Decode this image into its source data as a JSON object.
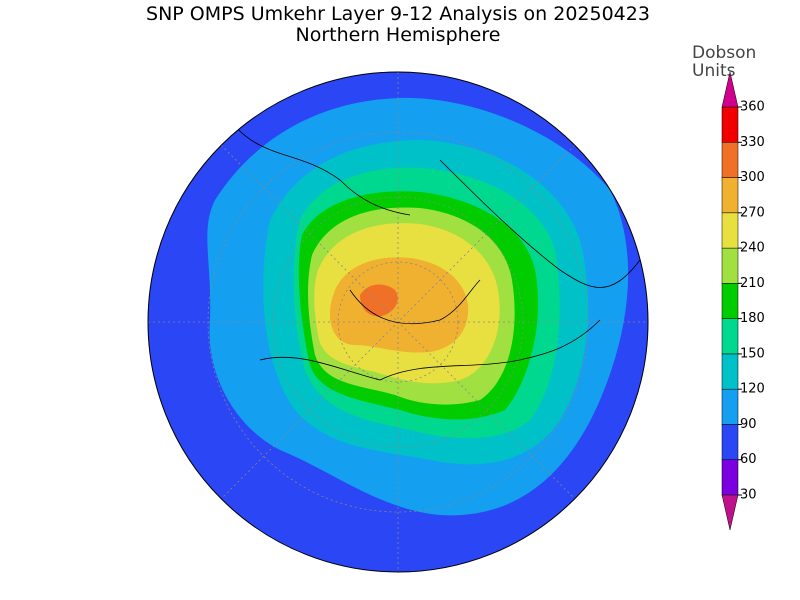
{
  "title": "SNP OMPS Umkehr Layer 9-12 Analysis on 20250423",
  "subtitle": "Northern Hemisphere",
  "colorbar": {
    "label": [
      "Dobson",
      "Units"
    ],
    "ticks": [
      30,
      60,
      90,
      120,
      150,
      180,
      210,
      240,
      270,
      300,
      330,
      360
    ],
    "colors": [
      "#c0108c",
      "#7a00e0",
      "#2a46f5",
      "#149ff0",
      "#00c0c8",
      "#00d890",
      "#00cc00",
      "#a0e040",
      "#e8e040",
      "#f0b030",
      "#f07028",
      "#f00000",
      "#d0008c"
    ]
  }
}
